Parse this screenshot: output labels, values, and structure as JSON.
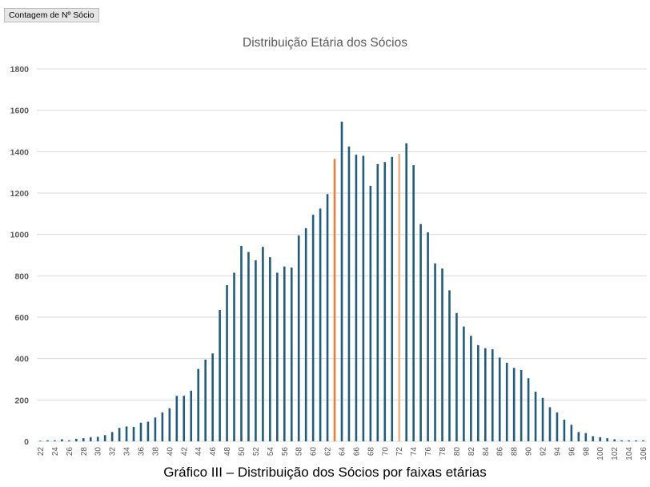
{
  "pivot_field_button": "Contagem de Nº Sócio",
  "caption": "Gráfico III – Distribuição dos Sócios por faixas etárias",
  "colors": {
    "bar": "#1f5c7f",
    "highlight": "#ed7d31",
    "highlight_light": "#f4b183",
    "grid": "#d9d9d9",
    "text": "#595959"
  },
  "chart_data": {
    "type": "bar",
    "title": "Distribuição Etária dos Sócios",
    "xlabel": "",
    "ylabel": "",
    "ylim": [
      0,
      1800
    ],
    "yticks": [
      0,
      200,
      400,
      600,
      800,
      1000,
      1200,
      1400,
      1600,
      1800
    ],
    "grid": true,
    "categories": [
      22,
      23,
      24,
      25,
      26,
      27,
      28,
      29,
      30,
      31,
      32,
      33,
      34,
      35,
      36,
      37,
      38,
      39,
      40,
      41,
      42,
      43,
      44,
      45,
      46,
      47,
      48,
      49,
      50,
      51,
      52,
      53,
      54,
      55,
      56,
      57,
      58,
      59,
      60,
      61,
      62,
      63,
      64,
      65,
      66,
      67,
      68,
      69,
      70,
      71,
      72,
      73,
      74,
      75,
      76,
      77,
      78,
      79,
      80,
      81,
      82,
      83,
      84,
      85,
      86,
      87,
      88,
      89,
      90,
      91,
      92,
      93,
      94,
      95,
      96,
      97,
      98,
      99,
      100,
      101,
      102,
      103,
      104,
      105,
      106
    ],
    "x_tick_labels": [
      "22",
      "24",
      "26",
      "28",
      "30",
      "32",
      "34",
      "36",
      "38",
      "40",
      "42",
      "44",
      "46",
      "48",
      "50",
      "52",
      "54",
      "56",
      "58",
      "60",
      "62",
      "64",
      "66",
      "68",
      "70",
      "72",
      "74",
      "76",
      "78",
      "80",
      "82",
      "84",
      "86",
      "88",
      "90",
      "92",
      "94",
      "96",
      "98",
      "100",
      "102",
      "104",
      "106"
    ],
    "values": [
      3,
      5,
      5,
      10,
      5,
      12,
      15,
      20,
      22,
      30,
      45,
      65,
      72,
      70,
      90,
      95,
      115,
      140,
      160,
      220,
      220,
      245,
      350,
      395,
      425,
      635,
      755,
      815,
      945,
      915,
      875,
      940,
      890,
      815,
      845,
      840,
      995,
      1030,
      1095,
      1125,
      1195,
      1365,
      1545,
      1425,
      1385,
      1380,
      1235,
      1340,
      1350,
      1375,
      1390,
      1440,
      1335,
      1050,
      1010,
      860,
      835,
      730,
      620,
      555,
      510,
      465,
      450,
      445,
      405,
      380,
      355,
      345,
      305,
      240,
      210,
      165,
      140,
      105,
      80,
      45,
      40,
      25,
      20,
      15,
      10,
      5,
      5,
      5,
      5
    ],
    "highlighted_categories": [
      63,
      72
    ]
  }
}
